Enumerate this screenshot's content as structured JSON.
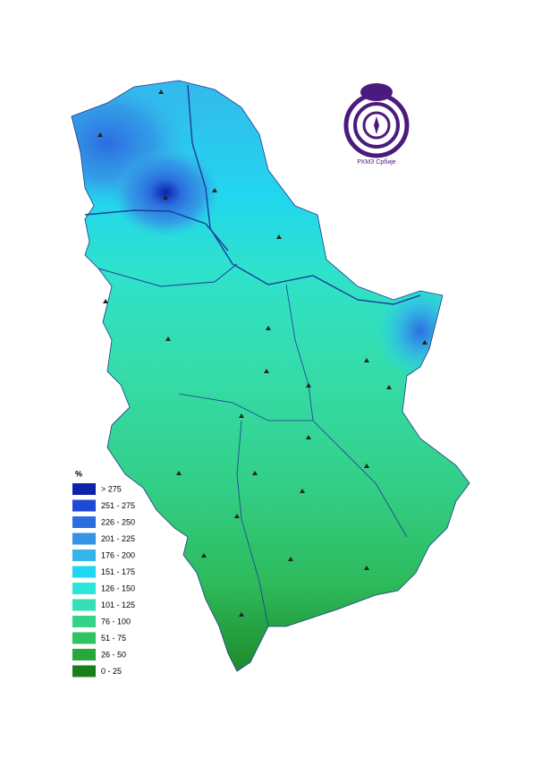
{
  "legend": {
    "title": "%",
    "items": [
      {
        "label": "> 275",
        "color": "#0b23a8"
      },
      {
        "label": "251 - 275",
        "color": "#1f48d6"
      },
      {
        "label": "226 - 250",
        "color": "#2c6de0"
      },
      {
        "label": "201 - 225",
        "color": "#3494e6"
      },
      {
        "label": "176 - 200",
        "color": "#33b4eb"
      },
      {
        "label": "151 - 175",
        "color": "#1ed8ef"
      },
      {
        "label": "126 - 150",
        "color": "#2de5d8"
      },
      {
        "label": "101 - 125",
        "color": "#35e0b4"
      },
      {
        "label": "76 - 100",
        "color": "#36d28a"
      },
      {
        "label": "51 - 75",
        "color": "#2fc462"
      },
      {
        "label": "26 - 50",
        "color": "#27a83a"
      },
      {
        "label": "0 - 25",
        "color": "#1a7d1c"
      }
    ]
  },
  "logo": {
    "text": "РХМЗ Србије"
  }
}
